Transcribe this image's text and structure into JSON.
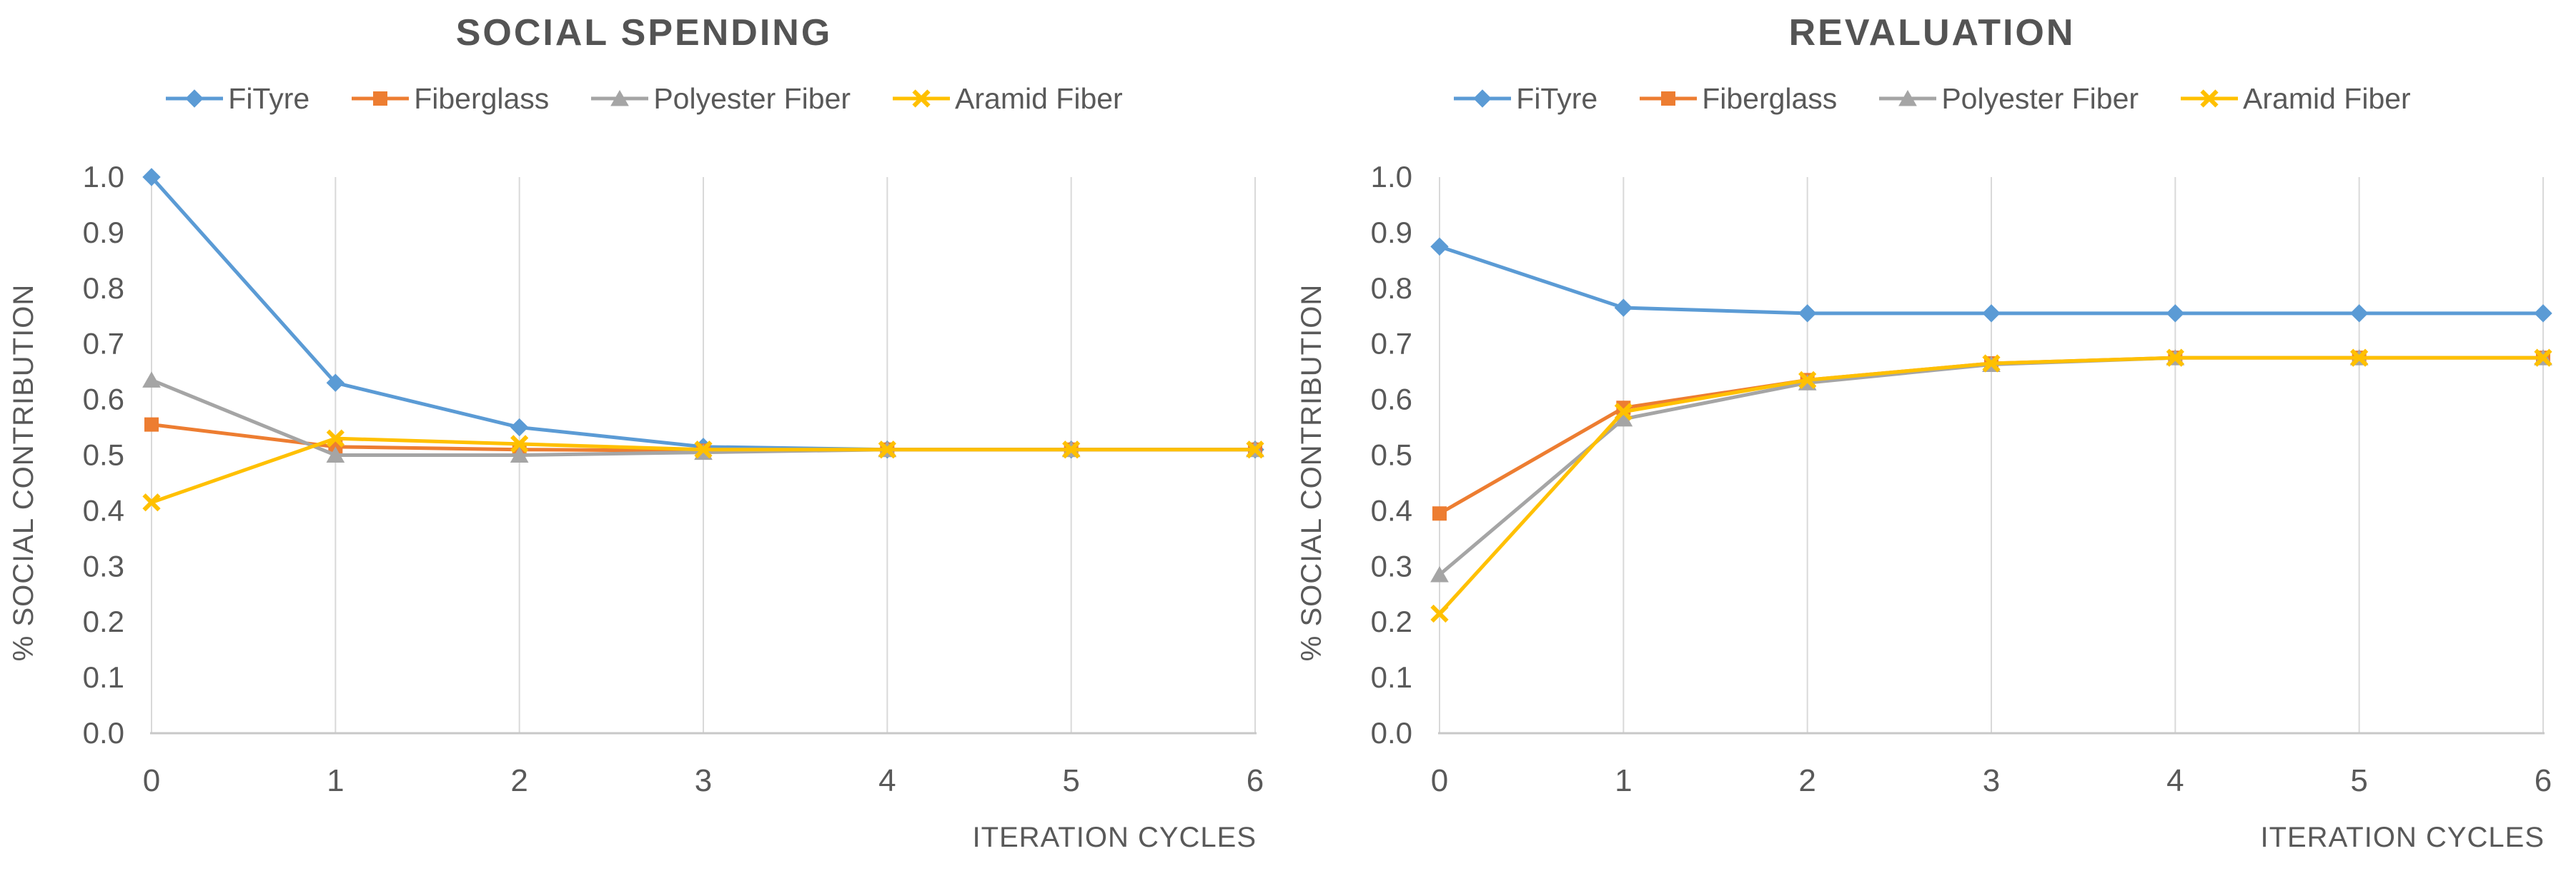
{
  "page_background": "#FFFFFF",
  "text_color": "#595959",
  "title_color": "#545454",
  "gridline_color": "#D9D9D9",
  "axis_line_color": "#C8C8C8",
  "chart_data": [
    {
      "type": "line",
      "title": "SOCIAL SPENDING",
      "xlabel": "ITERATION CYCLES",
      "ylabel": "% SOCIAL CONTRIBUTION",
      "x_ticks": [
        "0",
        "1",
        "2",
        "3",
        "4",
        "5",
        "6"
      ],
      "y_ticks": [
        "0.0",
        "0.1",
        "0.2",
        "0.3",
        "0.4",
        "0.5",
        "0.6",
        "0.7",
        "0.8",
        "0.9",
        "1.0"
      ],
      "ylim": [
        0.0,
        1.0
      ],
      "grid": "vertical-only",
      "legend_position": "top",
      "x": [
        0,
        1,
        2,
        3,
        4,
        5,
        6
      ],
      "series": [
        {
          "name": "FiTyre",
          "color": "#5B9BD5",
          "marker": "diamond",
          "values": [
            1.0,
            0.63,
            0.55,
            0.515,
            0.51,
            0.51,
            0.51
          ]
        },
        {
          "name": "Fiberglass",
          "color": "#ED7D31",
          "marker": "square",
          "values": [
            0.555,
            0.515,
            0.51,
            0.508,
            0.51,
            0.51,
            0.51
          ]
        },
        {
          "name": "Polyester Fiber",
          "color": "#A5A5A5",
          "marker": "triangle",
          "values": [
            0.635,
            0.5,
            0.5,
            0.505,
            0.51,
            0.51,
            0.51
          ]
        },
        {
          "name": "Aramid Fiber",
          "color": "#FFC000",
          "marker": "x",
          "values": [
            0.415,
            0.53,
            0.52,
            0.51,
            0.51,
            0.51,
            0.51
          ]
        }
      ]
    },
    {
      "type": "line",
      "title": "REVALUATION",
      "xlabel": "ITERATION CYCLES",
      "ylabel": "% SOCIAL CONTRIBUTION",
      "x_ticks": [
        "0",
        "1",
        "2",
        "3",
        "4",
        "5",
        "6"
      ],
      "y_ticks": [
        "0.0",
        "0.1",
        "0.2",
        "0.3",
        "0.4",
        "0.5",
        "0.6",
        "0.7",
        "0.8",
        "0.9",
        "1.0"
      ],
      "ylim": [
        0.0,
        1.0
      ],
      "grid": "vertical-only",
      "legend_position": "top",
      "x": [
        0,
        1,
        2,
        3,
        4,
        5,
        6
      ],
      "series": [
        {
          "name": "FiTyre",
          "color": "#5B9BD5",
          "marker": "diamond",
          "values": [
            0.875,
            0.765,
            0.755,
            0.755,
            0.755,
            0.755,
            0.755
          ]
        },
        {
          "name": "Fiberglass",
          "color": "#ED7D31",
          "marker": "square",
          "values": [
            0.395,
            0.585,
            0.635,
            0.665,
            0.675,
            0.675,
            0.675
          ]
        },
        {
          "name": "Polyester Fiber",
          "color": "#A5A5A5",
          "marker": "triangle",
          "values": [
            0.285,
            0.565,
            0.63,
            0.663,
            0.675,
            0.675,
            0.675
          ]
        },
        {
          "name": "Aramid Fiber",
          "color": "#FFC000",
          "marker": "x",
          "values": [
            0.215,
            0.578,
            0.635,
            0.665,
            0.675,
            0.675,
            0.675
          ]
        }
      ]
    }
  ]
}
